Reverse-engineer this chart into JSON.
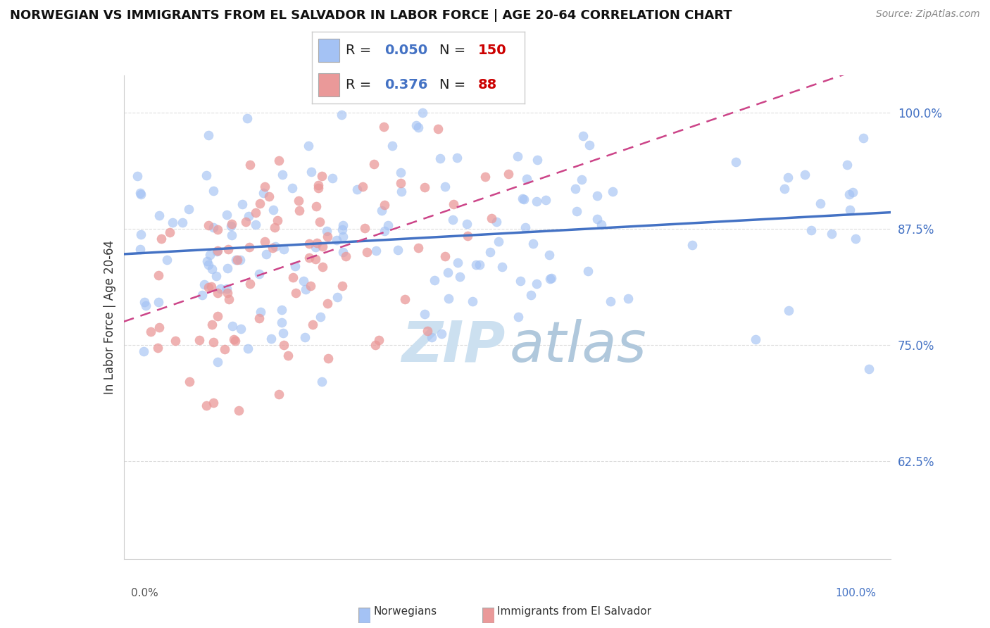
{
  "title": "NORWEGIAN VS IMMIGRANTS FROM EL SALVADOR IN LABOR FORCE | AGE 20-64 CORRELATION CHART",
  "source": "Source: ZipAtlas.com",
  "ylabel": "In Labor Force | Age 20-64",
  "xlim": [
    -0.01,
    1.02
  ],
  "ylim": [
    0.52,
    1.04
  ],
  "y_ticks": [
    0.625,
    0.75,
    0.875,
    1.0
  ],
  "y_tick_labels": [
    "62.5%",
    "75.0%",
    "87.5%",
    "100.0%"
  ],
  "norwegian_R": 0.05,
  "norwegian_N": 150,
  "salvador_R": 0.376,
  "salvador_N": 88,
  "blue_dot_color": "#a4c2f4",
  "pink_dot_color": "#ea9999",
  "blue_line_color": "#4472c4",
  "pink_line_color": "#cc4488",
  "axis_label_color": "#4472c4",
  "grid_color": "#dddddd",
  "background": "#ffffff",
  "watermark_color": "#cce0f0",
  "title_fontsize": 13,
  "legend_fontsize": 14,
  "tick_fontsize": 12
}
